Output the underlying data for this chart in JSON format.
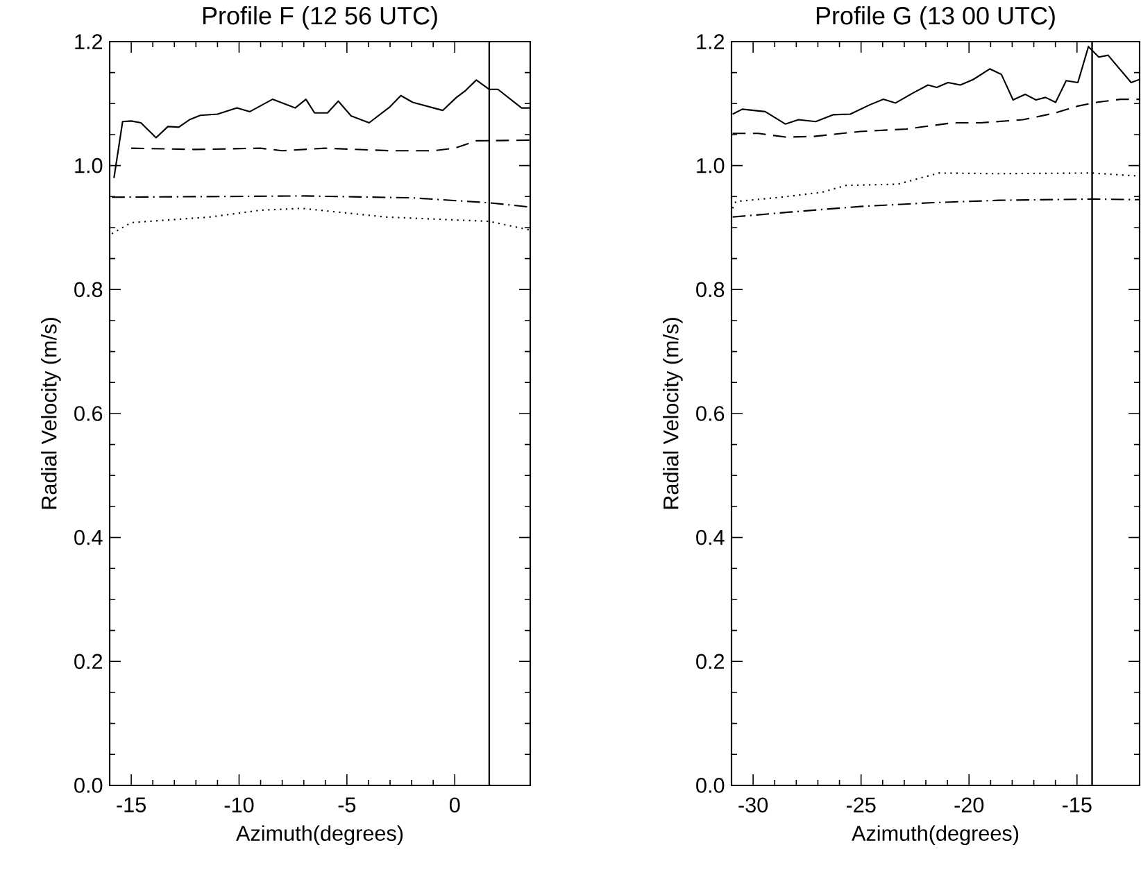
{
  "chart_data": [
    {
      "type": "line",
      "title": "Profile F (12 56 UTC)",
      "xlabel": "Azimuth(degrees)",
      "ylabel": "Radial Velocity (m/s)",
      "xlim": [
        -16,
        3.5
      ],
      "ylim": [
        0,
        1.2
      ],
      "xticks": [
        -15,
        -10,
        -5,
        0
      ],
      "yticks": [
        {
          "value": 0,
          "label": "0.0"
        },
        {
          "value": 0.2,
          "label": "0.2"
        },
        {
          "value": 0.4,
          "label": "0.4"
        },
        {
          "value": 0.6,
          "label": "0.6"
        },
        {
          "value": 0.8,
          "label": "0.8"
        },
        {
          "value": 1.0,
          "label": "1.0"
        },
        {
          "value": 1.2,
          "label": "1.2"
        }
      ],
      "ref_lines": [
        {
          "axis": "x",
          "value": 1.6,
          "color": "#000000"
        }
      ],
      "series": [
        {
          "color": "#000000",
          "line_style": "solid",
          "x": [
            -15.8,
            -15.4,
            -15.0,
            -14.55,
            -13.85,
            -13.3,
            -12.8,
            -12.3,
            -11.8,
            -11.0,
            -10.1,
            -9.5,
            -8.45,
            -7.4,
            -6.9,
            -6.5,
            -5.9,
            -5.4,
            -4.8,
            -3.97,
            -3.0,
            -2.5,
            -1.95,
            -0.56,
            0.08,
            0.5,
            1.0,
            1.6,
            2.0,
            3.1,
            3.5
          ],
          "values": [
            0.98,
            1.071,
            1.072,
            1.069,
            1.045,
            1.063,
            1.062,
            1.074,
            1.081,
            1.083,
            1.093,
            1.087,
            1.107,
            1.093,
            1.107,
            1.085,
            1.085,
            1.104,
            1.08,
            1.069,
            1.095,
            1.113,
            1.102,
            1.089,
            1.11,
            1.121,
            1.138,
            1.123,
            1.123,
            1.093,
            1.093
          ]
        },
        {
          "color": "#000000",
          "line_style": "dashed",
          "x": [
            -15.0,
            -12.0,
            -9.0,
            -8.0,
            -6.0,
            -3.0,
            -1.0,
            0.0,
            1.0,
            3.5
          ],
          "values": [
            1.028,
            1.026,
            1.028,
            1.024,
            1.028,
            1.024,
            1.024,
            1.028,
            1.04,
            1.041
          ]
        },
        {
          "color": "#000000",
          "line_style": "dashdot",
          "x": [
            -15.9,
            -7.0,
            -2.0,
            1.6,
            3.5
          ],
          "values": [
            0.949,
            0.951,
            0.948,
            0.94,
            0.933
          ]
        },
        {
          "color": "#000000",
          "line_style": "dotted",
          "x": [
            -15.9,
            -15.0,
            -11.35,
            -9.0,
            -7.1,
            -3.2,
            1.6,
            3.5
          ],
          "values": [
            0.89,
            0.908,
            0.917,
            0.928,
            0.931,
            0.917,
            0.91,
            0.896
          ]
        }
      ]
    },
    {
      "type": "line",
      "title": "Profile G (13 00 UTC)",
      "xlabel": "Azimuth(degrees)",
      "ylabel": "Radial Velocity (m/s)",
      "xlim": [
        -31,
        -12.1
      ],
      "ylim": [
        0,
        1.2
      ],
      "xticks": [
        -30,
        -25,
        -20,
        -15
      ],
      "yticks": [
        {
          "value": 0,
          "label": "0.0"
        },
        {
          "value": 0.2,
          "label": "0.2"
        },
        {
          "value": 0.4,
          "label": "0.4"
        },
        {
          "value": 0.6,
          "label": "0.6"
        },
        {
          "value": 0.8,
          "label": "0.8"
        },
        {
          "value": 1.0,
          "label": "1.0"
        },
        {
          "value": 1.2,
          "label": "1.2"
        }
      ],
      "ref_lines": [
        {
          "axis": "x",
          "value": -14.3,
          "color": "#000000"
        }
      ],
      "series": [
        {
          "color": "#000000",
          "line_style": "solid",
          "x": [
            -30.95,
            -30.5,
            -29.44,
            -28.5,
            -27.9,
            -27.1,
            -26.3,
            -25.5,
            -24.6,
            -23.97,
            -23.4,
            -22.6,
            -21.9,
            -21.5,
            -20.97,
            -20.4,
            -19.8,
            -19.04,
            -18.5,
            -17.96,
            -17.4,
            -16.9,
            -16.46,
            -15.99,
            -15.5,
            -14.96,
            -14.47,
            -13.99,
            -13.56,
            -12.49,
            -12.1
          ],
          "values": [
            1.083,
            1.091,
            1.087,
            1.067,
            1.074,
            1.071,
            1.082,
            1.083,
            1.098,
            1.107,
            1.101,
            1.117,
            1.13,
            1.126,
            1.134,
            1.13,
            1.139,
            1.156,
            1.147,
            1.106,
            1.115,
            1.106,
            1.11,
            1.102,
            1.137,
            1.134,
            1.192,
            1.175,
            1.178,
            1.134,
            1.139
          ]
        },
        {
          "color": "#000000",
          "line_style": "dashed",
          "x": [
            -30.95,
            -29.76,
            -28.5,
            -27.2,
            -25.04,
            -22.9,
            -20.75,
            -19.46,
            -17.5,
            -16.0,
            -14.96,
            -14.1,
            -13.0,
            -12.1
          ],
          "values": [
            1.052,
            1.052,
            1.046,
            1.047,
            1.055,
            1.059,
            1.069,
            1.069,
            1.074,
            1.085,
            1.096,
            1.102,
            1.107,
            1.107
          ]
        },
        {
          "color": "#000000",
          "line_style": "dotted",
          "x": [
            -30.95,
            -30.8,
            -28.7,
            -26.8,
            -25.7,
            -23.3,
            -21.4,
            -18.6,
            -14.3,
            -12.1
          ],
          "values": [
            0.931,
            0.942,
            0.949,
            0.957,
            0.968,
            0.97,
            0.988,
            0.987,
            0.988,
            0.983
          ]
        },
        {
          "color": "#000000",
          "line_style": "dashdot",
          "x": [
            -30.95,
            -28.3,
            -25.04,
            -21.8,
            -18.6,
            -14.3,
            -12.1
          ],
          "values": [
            0.917,
            0.925,
            0.934,
            0.94,
            0.944,
            0.946,
            0.945
          ]
        }
      ]
    }
  ]
}
